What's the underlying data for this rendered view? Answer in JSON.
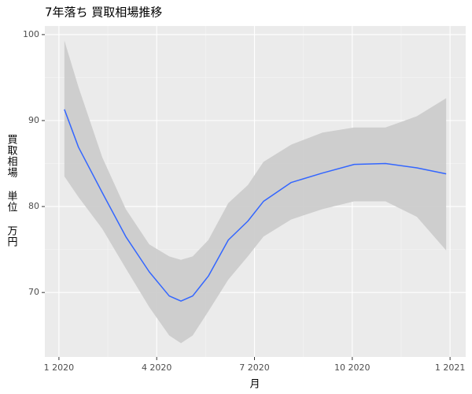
{
  "chart_data": {
    "type": "line",
    "title": "7年落ち 買取相場推移",
    "x_label": "月",
    "y_label": "買取相場 単位 万円",
    "x": [
      2020.014,
      2020.05,
      2020.111,
      2020.171,
      2020.231,
      2020.282,
      2020.312,
      2020.342,
      2020.382,
      2020.433,
      2020.483,
      2020.523,
      2020.594,
      2020.674,
      2020.755,
      2020.835,
      2020.915,
      2020.99
    ],
    "values": [
      91.3,
      86.9,
      81.6,
      76.5,
      72.4,
      69.6,
      69.0,
      69.6,
      71.9,
      76.1,
      78.3,
      80.6,
      82.8,
      83.9,
      84.9,
      85.0,
      84.5,
      83.8
    ],
    "upper": [
      99.3,
      93.9,
      85.7,
      79.7,
      75.6,
      74.2,
      73.8,
      74.2,
      76.1,
      80.4,
      82.5,
      85.2,
      87.2,
      88.6,
      89.2,
      89.2,
      90.5,
      92.6
    ],
    "lower": [
      83.5,
      81.1,
      77.4,
      72.8,
      68.3,
      65.0,
      64.1,
      65.0,
      67.8,
      71.5,
      74.2,
      76.5,
      78.5,
      79.7,
      80.6,
      80.6,
      78.8,
      74.9
    ],
    "color": "#3366ff",
    "band_color": "#cccccc",
    "xlim": [
      2019.964,
      2021.04
    ],
    "xticks": [
      {
        "value": 2020,
        "label": "1 2020"
      },
      {
        "value": 2020.25,
        "label": "4 2020"
      },
      {
        "value": 2020.5,
        "label": "7 2020"
      },
      {
        "value": 2020.75,
        "label": "10 2020"
      },
      {
        "value": 2021,
        "label": "1 2021"
      }
    ],
    "ylim": [
      62.5,
      101
    ],
    "yticks": [
      70,
      80,
      90,
      100
    ],
    "grid": true
  }
}
